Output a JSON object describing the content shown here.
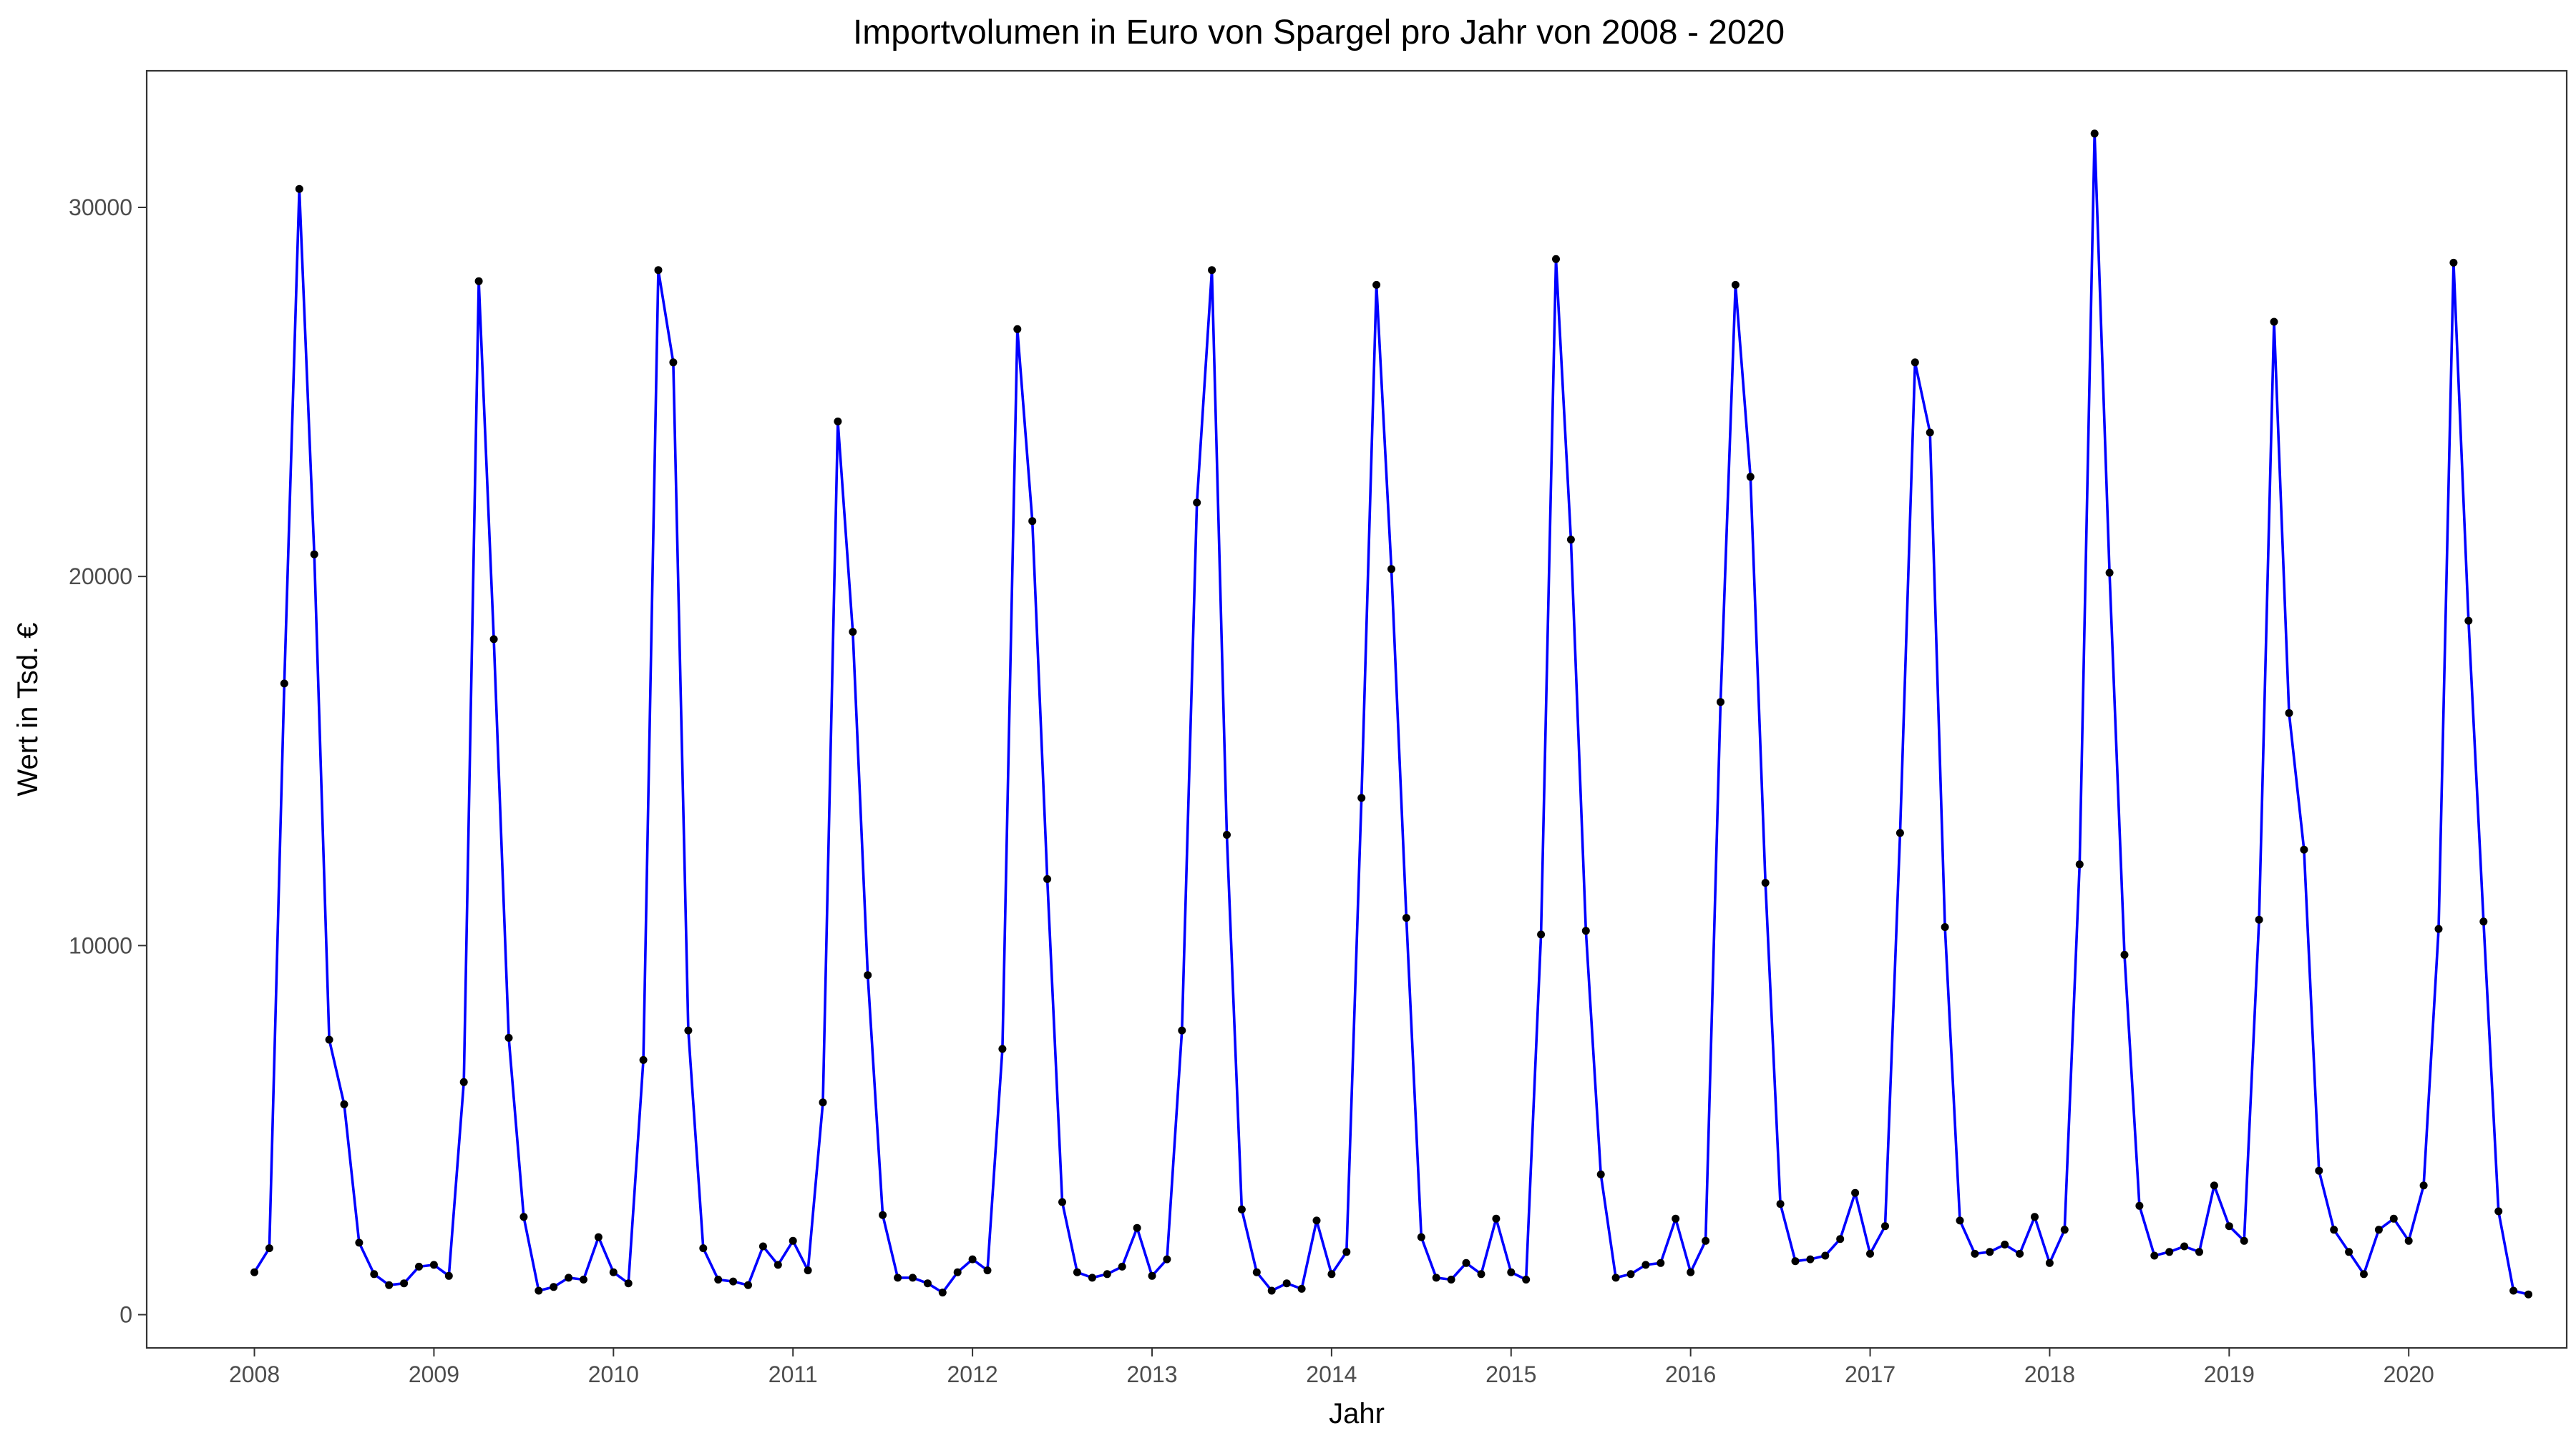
{
  "chart_data": {
    "type": "line",
    "title": "Importvolumen in Euro von Spargel pro Jahr von 2008 - 2020",
    "xlabel": "Jahr",
    "ylabel": "Wert in Tsd. €",
    "xlim": [
      2007.4,
      2020.88
    ],
    "ylim": [
      -900,
      33700
    ],
    "x_ticks": [
      2008,
      2009,
      2010,
      2011,
      2012,
      2013,
      2014,
      2015,
      2016,
      2017,
      2018,
      2019,
      2020
    ],
    "y_ticks": [
      0,
      10000,
      20000,
      30000
    ],
    "grid": false,
    "legend": "none",
    "colors": {
      "line": "#0000ff",
      "points": "#000000"
    },
    "series": [
      {
        "x_start": 2008,
        "step": 0.08333333,
        "values": [
          1150,
          1800,
          17100,
          30500,
          20600,
          7450,
          5700,
          1950,
          1100,
          800,
          850,
          1300,
          1350,
          1050,
          6300,
          28000,
          18300,
          7500,
          2650,
          650,
          750,
          1000,
          950,
          2100,
          1150,
          850,
          6900,
          28300,
          25800,
          7700,
          1800,
          950,
          900,
          800,
          1850,
          1350,
          2000,
          1200,
          5750,
          24200,
          18500,
          9200,
          2700,
          1000,
          1000,
          850,
          600,
          1150,
          1500,
          1200,
          7200,
          26700,
          21500,
          11800,
          3050,
          1150,
          1000,
          1100,
          1300,
          2350,
          1050,
          1500,
          7700,
          22000,
          28300,
          13000,
          2850,
          1150,
          650,
          850,
          700,
          2550,
          1100,
          1700,
          14000,
          27900,
          20200,
          10750,
          2100,
          1000,
          950,
          1400,
          1100,
          2600,
          1150,
          950,
          10300,
          28600,
          21000,
          10400,
          3800,
          1000,
          1100,
          1350,
          1400,
          2600,
          1150,
          2000,
          16600,
          27900,
          22700,
          11700,
          3000,
          1450,
          1500,
          1600,
          2050,
          3300,
          1650,
          2400,
          13050,
          25800,
          23900,
          10500,
          2550,
          1650,
          1700,
          1900,
          1650,
          2650,
          1400,
          2300,
          12200,
          32000,
          20100,
          9750,
          2950,
          1600,
          1700,
          1850,
          1700,
          3500,
          2400,
          2000,
          10700,
          26900,
          16300,
          12600,
          3900,
          2300,
          1700,
          1100,
          2300,
          2600,
          2000,
          3500,
          10450,
          28500,
          18800,
          10650,
          2800,
          650,
          550
        ]
      }
    ]
  }
}
